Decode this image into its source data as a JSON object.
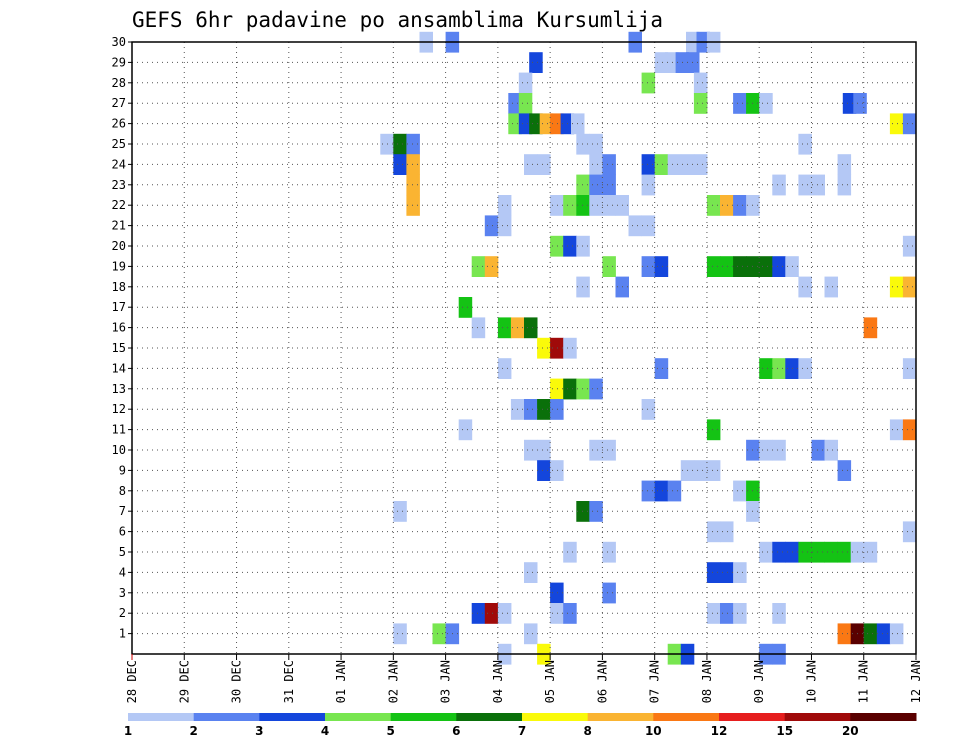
{
  "chart_data": {
    "type": "heatmap",
    "title": "GEFS 6hr padavine po ansamblima Kursumlija",
    "x_tick_labels": [
      "28 DEC",
      "29 DEC",
      "30 DEC",
      "31 DEC",
      "01 JAN",
      "02 JAN",
      "03 JAN",
      "04 JAN",
      "05 JAN",
      "06 JAN",
      "07 JAN",
      "08 JAN",
      "09 JAN",
      "10 JAN",
      "11 JAN",
      "12 JAN"
    ],
    "y_range": [
      0,
      30
    ],
    "y_ticks": [
      1,
      2,
      3,
      4,
      5,
      6,
      7,
      8,
      9,
      10,
      11,
      12,
      13,
      14,
      15,
      16,
      17,
      18,
      19,
      20,
      21,
      22,
      23,
      24,
      25,
      26,
      27,
      28,
      29,
      30
    ],
    "steps_per_day": 4,
    "grid": true,
    "legend": "bottom",
    "colorbar": {
      "labels": [
        "1",
        "2",
        "3",
        "4",
        "5",
        "6",
        "7",
        "8",
        "10",
        "12",
        "15",
        "20"
      ],
      "colors": [
        "#b4c8f5",
        "#5a82f0",
        "#1446dc",
        "#78e650",
        "#14c314",
        "#0a700a",
        "#fafa0a",
        "#fab432",
        "#fa7814",
        "#e61e1e",
        "#a00a0a",
        "#5a0000"
      ]
    },
    "cells": [
      [
        5.5,
        30,
        0
      ],
      [
        6.0,
        30,
        1
      ],
      [
        9.5,
        30,
        1
      ],
      [
        10.6,
        30,
        0
      ],
      [
        10.8,
        30,
        1
      ],
      [
        11.0,
        30,
        0
      ],
      [
        7.6,
        29,
        2
      ],
      [
        10.0,
        29,
        0
      ],
      [
        10.2,
        29,
        0
      ],
      [
        10.4,
        29,
        1
      ],
      [
        10.6,
        29,
        1
      ],
      [
        7.4,
        28,
        0
      ],
      [
        9.75,
        28,
        3
      ],
      [
        10.75,
        28,
        0
      ],
      [
        7.2,
        27,
        1
      ],
      [
        7.4,
        27,
        3
      ],
      [
        10.75,
        27,
        3
      ],
      [
        11.5,
        27,
        1
      ],
      [
        11.75,
        27,
        4
      ],
      [
        12.0,
        27,
        0
      ],
      [
        13.6,
        27,
        2
      ],
      [
        13.8,
        27,
        1
      ],
      [
        7.2,
        26,
        3
      ],
      [
        7.4,
        26,
        2
      ],
      [
        7.6,
        26,
        5
      ],
      [
        7.8,
        26,
        7
      ],
      [
        8.0,
        26,
        8
      ],
      [
        8.2,
        26,
        2
      ],
      [
        8.4,
        26,
        0
      ],
      [
        14.5,
        26,
        6
      ],
      [
        14.75,
        26,
        1
      ],
      [
        4.75,
        25,
        0
      ],
      [
        5.0,
        25,
        5
      ],
      [
        5.25,
        25,
        1
      ],
      [
        8.5,
        25,
        0
      ],
      [
        8.75,
        25,
        0
      ],
      [
        12.75,
        25,
        0
      ],
      [
        5.0,
        24,
        2
      ],
      [
        5.25,
        24,
        7
      ],
      [
        7.5,
        24,
        0
      ],
      [
        7.75,
        24,
        0
      ],
      [
        8.75,
        24,
        0
      ],
      [
        9.0,
        24,
        1
      ],
      [
        9.75,
        24,
        2
      ],
      [
        10.0,
        24,
        3
      ],
      [
        10.25,
        24,
        0
      ],
      [
        10.5,
        24,
        0
      ],
      [
        10.75,
        24,
        0
      ],
      [
        13.5,
        24,
        0
      ],
      [
        5.25,
        23,
        7
      ],
      [
        8.5,
        23,
        3
      ],
      [
        8.75,
        23,
        1
      ],
      [
        9.0,
        23,
        1
      ],
      [
        9.75,
        23,
        0
      ],
      [
        12.25,
        23,
        0
      ],
      [
        12.75,
        23,
        0
      ],
      [
        13.0,
        23,
        0
      ],
      [
        13.5,
        23,
        0
      ],
      [
        5.25,
        22,
        7
      ],
      [
        7.0,
        22,
        0
      ],
      [
        8.0,
        22,
        0
      ],
      [
        8.25,
        22,
        3
      ],
      [
        8.5,
        22,
        4
      ],
      [
        8.75,
        22,
        0
      ],
      [
        9.0,
        22,
        0
      ],
      [
        9.25,
        22,
        0
      ],
      [
        11.0,
        22,
        3
      ],
      [
        11.25,
        22,
        7
      ],
      [
        11.5,
        22,
        1
      ],
      [
        11.75,
        22,
        0
      ],
      [
        6.75,
        21,
        1
      ],
      [
        7.0,
        21,
        0
      ],
      [
        9.5,
        21,
        0
      ],
      [
        9.75,
        21,
        0
      ],
      [
        8.0,
        20,
        3
      ],
      [
        8.25,
        20,
        2
      ],
      [
        8.5,
        20,
        0
      ],
      [
        14.75,
        20,
        0
      ],
      [
        6.5,
        19,
        3
      ],
      [
        6.75,
        19,
        7
      ],
      [
        9.0,
        19,
        3
      ],
      [
        9.75,
        19,
        1
      ],
      [
        10.0,
        19,
        2
      ],
      [
        11.0,
        19,
        4
      ],
      [
        11.25,
        19,
        4
      ],
      [
        11.5,
        19,
        5
      ],
      [
        11.75,
        19,
        5
      ],
      [
        12.0,
        19,
        5
      ],
      [
        12.25,
        19,
        2
      ],
      [
        12.5,
        19,
        0
      ],
      [
        9.25,
        18,
        1
      ],
      [
        8.5,
        18,
        0
      ],
      [
        12.75,
        18,
        0
      ],
      [
        13.25,
        18,
        0
      ],
      [
        14.5,
        18,
        6
      ],
      [
        14.75,
        18,
        7
      ],
      [
        6.25,
        17,
        4
      ],
      [
        6.5,
        16,
        0
      ],
      [
        7.0,
        16,
        4
      ],
      [
        7.25,
        16,
        7
      ],
      [
        7.5,
        16,
        5
      ],
      [
        14.0,
        16,
        8
      ],
      [
        7.75,
        15,
        6
      ],
      [
        8.0,
        15,
        10
      ],
      [
        8.25,
        15,
        0
      ],
      [
        7.0,
        14,
        0
      ],
      [
        10.0,
        14,
        1
      ],
      [
        12.0,
        14,
        4
      ],
      [
        12.25,
        14,
        3
      ],
      [
        12.5,
        14,
        2
      ],
      [
        12.75,
        14,
        0
      ],
      [
        14.75,
        14,
        0
      ],
      [
        8.0,
        13,
        6
      ],
      [
        8.25,
        13,
        5
      ],
      [
        8.5,
        13,
        3
      ],
      [
        8.75,
        13,
        1
      ],
      [
        7.25,
        12,
        0
      ],
      [
        7.5,
        12,
        1
      ],
      [
        7.75,
        12,
        5
      ],
      [
        8.0,
        12,
        1
      ],
      [
        9.75,
        12,
        0
      ],
      [
        6.25,
        11,
        0
      ],
      [
        11.0,
        11,
        4
      ],
      [
        14.5,
        11,
        0
      ],
      [
        14.75,
        11,
        8
      ],
      [
        7.5,
        10,
        0
      ],
      [
        7.75,
        10,
        0
      ],
      [
        8.75,
        10,
        0
      ],
      [
        9.0,
        10,
        0
      ],
      [
        11.75,
        10,
        1
      ],
      [
        12.0,
        10,
        0
      ],
      [
        12.25,
        10,
        0
      ],
      [
        13.0,
        10,
        1
      ],
      [
        13.25,
        10,
        0
      ],
      [
        7.75,
        9,
        2
      ],
      [
        8.0,
        9,
        0
      ],
      [
        10.5,
        9,
        0
      ],
      [
        10.75,
        9,
        0
      ],
      [
        11.0,
        9,
        0
      ],
      [
        13.5,
        9,
        1
      ],
      [
        9.75,
        8,
        1
      ],
      [
        10.0,
        8,
        2
      ],
      [
        10.25,
        8,
        1
      ],
      [
        11.5,
        8,
        0
      ],
      [
        11.75,
        8,
        4
      ],
      [
        5.0,
        7,
        0
      ],
      [
        8.5,
        7,
        5
      ],
      [
        8.75,
        7,
        1
      ],
      [
        11.75,
        7,
        0
      ],
      [
        11.0,
        6,
        0
      ],
      [
        11.25,
        6,
        0
      ],
      [
        14.75,
        6,
        0
      ],
      [
        8.25,
        5,
        0
      ],
      [
        9.0,
        5,
        0
      ],
      [
        12.0,
        5,
        0
      ],
      [
        12.25,
        5,
        2
      ],
      [
        12.5,
        5,
        2
      ],
      [
        12.75,
        5,
        4
      ],
      [
        13.0,
        5,
        4
      ],
      [
        13.25,
        5,
        4
      ],
      [
        13.5,
        5,
        4
      ],
      [
        13.75,
        5,
        0
      ],
      [
        14.0,
        5,
        0
      ],
      [
        7.5,
        4,
        0
      ],
      [
        11.0,
        4,
        2
      ],
      [
        11.25,
        4,
        2
      ],
      [
        11.5,
        4,
        0
      ],
      [
        8.0,
        3,
        2
      ],
      [
        9.0,
        3,
        1
      ],
      [
        6.5,
        2,
        2
      ],
      [
        6.75,
        2,
        10
      ],
      [
        7.0,
        2,
        0
      ],
      [
        8.0,
        2,
        0
      ],
      [
        8.25,
        2,
        1
      ],
      [
        11.0,
        2,
        0
      ],
      [
        11.25,
        2,
        1
      ],
      [
        11.5,
        2,
        0
      ],
      [
        12.25,
        2,
        0
      ],
      [
        5.0,
        1,
        0
      ],
      [
        5.75,
        1,
        3
      ],
      [
        6.0,
        1,
        1
      ],
      [
        7.5,
        1,
        0
      ],
      [
        13.5,
        1,
        8
      ],
      [
        13.75,
        1,
        11
      ],
      [
        14.0,
        1,
        5
      ],
      [
        14.25,
        1,
        2
      ],
      [
        14.5,
        1,
        0
      ],
      [
        7.0,
        0,
        0
      ],
      [
        7.75,
        0,
        6
      ],
      [
        10.25,
        0,
        3
      ],
      [
        10.5,
        0,
        2
      ],
      [
        12.0,
        0,
        1
      ],
      [
        12.25,
        0,
        1
      ]
    ]
  }
}
